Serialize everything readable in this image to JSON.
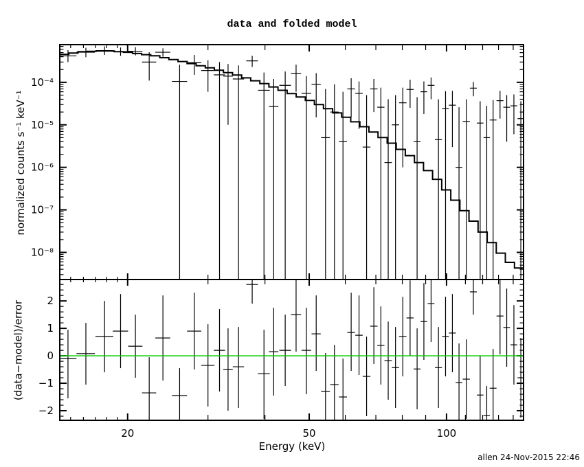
{
  "footer": "allen 24-Nov-2015 22:46",
  "colors": {
    "foreground": "#000000",
    "background": "#ffffff",
    "zero_line": "#00cc00"
  },
  "chart_data": {
    "type": "scatter",
    "title": "data and folded model",
    "xlabel": "Energy (keV)",
    "x_scale": "log",
    "xlim": [
      14.2,
      147.5
    ],
    "grid": false,
    "legend": "none",
    "x_major_ticks": [
      {
        "value": 20,
        "label": "20"
      },
      {
        "value": 50,
        "label": "50"
      },
      {
        "value": 100,
        "label": "100"
      }
    ],
    "x_minor_ticks": [
      15,
      16,
      17,
      18,
      19,
      30,
      40,
      60,
      70,
      80,
      90,
      110,
      120,
      130,
      140
    ],
    "panels": [
      {
        "name": "spectrum",
        "ylabel": "normalized counts s⁻¹ keV⁻¹",
        "y_scale": "log",
        "ylim": [
          2.3e-09,
          0.00077
        ],
        "y_major_ticks": [
          {
            "value": 0.0001,
            "label": "10⁻⁴"
          },
          {
            "value": 1e-05,
            "label": "10⁻⁵"
          },
          {
            "value": 1e-06,
            "label": "10⁻⁶"
          },
          {
            "value": 1e-07,
            "label": "10⁻⁷"
          },
          {
            "value": 1e-08,
            "label": "10⁻⁸"
          }
        ],
        "model_label": "folded model (stepped line)",
        "model_anchors": [
          [
            14.2,
            0.00044
          ],
          [
            16,
            0.00053
          ],
          [
            18,
            0.00055
          ],
          [
            20,
            0.00051
          ],
          [
            23,
            0.00042
          ],
          [
            26,
            0.00032
          ],
          [
            30,
            0.000225
          ],
          [
            35,
            0.000145
          ],
          [
            40,
            9.2e-05
          ],
          [
            45,
            5.8e-05
          ],
          [
            50,
            3.8e-05
          ],
          [
            55,
            2.4e-05
          ],
          [
            60,
            1.55e-05
          ],
          [
            65,
            1e-05
          ],
          [
            70,
            6.3e-06
          ],
          [
            75,
            4e-06
          ],
          [
            80,
            2.5e-06
          ],
          [
            85,
            1.6e-06
          ],
          [
            90,
            9.5e-07
          ],
          [
            95,
            5.5e-07
          ],
          [
            100,
            2.9e-07
          ],
          [
            105,
            1.6e-07
          ],
          [
            110,
            9e-08
          ],
          [
            115,
            5.2e-08
          ],
          [
            120,
            3e-08
          ],
          [
            125,
            1.8e-08
          ],
          [
            130,
            1.1e-08
          ],
          [
            135,
            7e-09
          ],
          [
            140,
            5e-09
          ],
          [
            147.5,
            3.8e-09
          ]
        ],
        "model_n_bins": 51,
        "points_columns": [
          "energy_keV",
          "half_width_keV",
          "value",
          "err_lo",
          "err_hi"
        ],
        "points": [
          [
            14.8,
            0.65,
            0.00042,
            0.0003,
            0.00057
          ],
          [
            16.2,
            0.75,
            0.00051,
            0.00039,
            0.00065
          ],
          [
            17.8,
            0.8,
            0.00056,
            0.00044,
            0.0007
          ],
          [
            19.3,
            0.75,
            0.00053,
            0.00042,
            0.00066
          ],
          [
            20.8,
            0.75,
            0.00054,
            0.00043,
            0.00067
          ],
          [
            22.3,
            0.8,
            0.0003,
            0.00011,
            0.00051
          ],
          [
            23.9,
            0.9,
            0.00051,
            0.0004,
            0.00063
          ],
          [
            26.0,
            1.0,
            0.000105,
            1e-12,
            0.00026
          ],
          [
            28.0,
            1.0,
            0.00029,
            0.00015,
            0.00044
          ],
          [
            30.0,
            1.0,
            0.00019,
            6e-05,
            0.00033
          ],
          [
            31.8,
            0.9,
            0.00015,
            1e-12,
            0.0003
          ],
          [
            33.2,
            0.8,
            0.00014,
            1e-05,
            0.00027
          ],
          [
            35.0,
            1.0,
            0.00012,
            1e-12,
            0.00025
          ],
          [
            37.5,
            1.1,
            0.00032,
            0.00023,
            0.00042
          ],
          [
            39.8,
            1.2,
            6.5e-05,
            1e-12,
            0.00017
          ],
          [
            41.8,
            1.0,
            2.7e-05,
            1e-12,
            0.00012
          ],
          [
            44.3,
            1.3,
            8.5e-05,
            1e-12,
            0.00018
          ],
          [
            46.8,
            1.2,
            0.00016,
            6e-05,
            0.00026
          ],
          [
            49.3,
            1.2,
            5.5e-05,
            1e-12,
            0.00014
          ],
          [
            51.8,
            1.2,
            9e-05,
            1.5e-05,
            0.000165
          ],
          [
            54.3,
            1.2,
            5e-06,
            1e-12,
            7e-05
          ],
          [
            56.8,
            1.2,
            2e-05,
            1e-12,
            9e-05
          ],
          [
            59.3,
            1.2,
            4e-06,
            1e-12,
            6e-05
          ],
          [
            61.8,
            1.2,
            7e-05,
            1.5e-05,
            0.000125
          ],
          [
            64.3,
            1.2,
            5.5e-05,
            8e-06,
            0.000105
          ],
          [
            66.8,
            1.3,
            3e-06,
            1e-12,
            5e-05
          ],
          [
            69.3,
            1.3,
            7e-05,
            2e-05,
            0.00012
          ],
          [
            71.8,
            1.3,
            2.6e-05,
            1e-12,
            7.5e-05
          ],
          [
            74.5,
            1.4,
            1.3e-06,
            1e-12,
            4e-05
          ],
          [
            77.3,
            1.4,
            1e-05,
            1e-12,
            5e-05
          ],
          [
            80.2,
            1.5,
            3.3e-05,
            1e-06,
            7.5e-05
          ],
          [
            83.2,
            1.5,
            6.8e-05,
            2.5e-05,
            0.000115
          ],
          [
            86.2,
            1.5,
            4e-06,
            1e-12,
            4.5e-05
          ],
          [
            89.2,
            1.5,
            6e-05,
            1.8e-05,
            0.000105
          ],
          [
            92.5,
            1.6,
            8.5e-05,
            4e-05,
            0.00013
          ],
          [
            96.0,
            1.7,
            4.5e-06,
            1e-12,
            4e-05
          ],
          [
            99.5,
            1.7,
            2.4e-05,
            1e-12,
            6.2e-05
          ],
          [
            103.0,
            1.8,
            2.9e-05,
            3e-06,
            6.3e-05
          ],
          [
            106.5,
            1.8,
            1e-06,
            1e-12,
            2.6e-05
          ],
          [
            110.5,
            2.0,
            1.2e-05,
            1e-12,
            4e-05
          ],
          [
            114.5,
            2.0,
            7.3e-05,
            4.7e-05,
            0.000102
          ],
          [
            118.5,
            2.0,
            1.1e-05,
            1e-12,
            3.6e-05
          ],
          [
            122.5,
            2.0,
            5e-06,
            1e-12,
            2.8e-05
          ],
          [
            126.5,
            2.2,
            1.3e-05,
            1e-12,
            3.8e-05
          ],
          [
            131.0,
            2.3,
            3.7e-05,
            1.4e-05,
            6.3e-05
          ],
          [
            135.5,
            2.3,
            2.6e-05,
            4e-06,
            5e-05
          ],
          [
            140.5,
            2.4,
            2.8e-05,
            6e-06,
            5.2e-05
          ],
          [
            145.5,
            2.4,
            1.4e-05,
            1e-12,
            3.6e-05
          ]
        ]
      },
      {
        "name": "residuals",
        "ylabel": "(data−model)/error",
        "y_scale": "linear",
        "ylim": [
          -2.35,
          2.78
        ],
        "y_major_ticks": [
          {
            "value": 2,
            "label": "2"
          },
          {
            "value": 1,
            "label": "1"
          },
          {
            "value": 0,
            "label": "0"
          },
          {
            "value": -1,
            "label": "−1"
          },
          {
            "value": -2,
            "label": "−2"
          }
        ],
        "y_minor_step": 0.2,
        "zero_line": {
          "value": 0,
          "color": "#00cc00"
        },
        "points_columns": [
          "energy_keV",
          "half_width_keV",
          "value",
          "err_lo",
          "err_hi"
        ],
        "points": [
          [
            14.8,
            0.65,
            -0.1,
            -1.55,
            0.95
          ],
          [
            16.2,
            0.75,
            0.08,
            -1.05,
            1.2
          ],
          [
            17.8,
            0.8,
            0.7,
            -0.6,
            2.0
          ],
          [
            19.3,
            0.75,
            0.9,
            -0.45,
            2.25
          ],
          [
            20.8,
            0.75,
            0.35,
            -0.8,
            1.5
          ],
          [
            22.3,
            0.8,
            -1.35,
            -2.65,
            -0.05
          ],
          [
            23.9,
            0.9,
            0.65,
            -0.9,
            2.2
          ],
          [
            26.0,
            1.0,
            -1.45,
            -2.45,
            -0.45
          ],
          [
            28.0,
            1.0,
            0.9,
            -0.5,
            2.3
          ],
          [
            30.0,
            1.0,
            -0.35,
            -1.85,
            1.15
          ],
          [
            31.8,
            0.9,
            0.2,
            -1.3,
            1.7
          ],
          [
            33.2,
            0.8,
            -0.5,
            -2.0,
            1.0
          ],
          [
            35.0,
            1.0,
            -0.4,
            -1.9,
            1.05
          ],
          [
            37.5,
            1.1,
            2.6,
            1.9,
            3.1
          ],
          [
            39.8,
            1.2,
            -0.65,
            -2.3,
            0.95
          ],
          [
            41.8,
            1.0,
            0.15,
            -1.45,
            1.75
          ],
          [
            44.3,
            1.3,
            0.2,
            -1.1,
            1.5
          ],
          [
            46.8,
            1.2,
            1.5,
            0.15,
            2.9
          ],
          [
            49.3,
            1.2,
            0.2,
            -1.4,
            1.75
          ],
          [
            51.8,
            1.2,
            0.8,
            -0.55,
            2.2
          ],
          [
            54.3,
            1.2,
            -1.3,
            -2.7,
            0.1
          ],
          [
            56.8,
            1.2,
            -1.05,
            -2.5,
            0.4
          ],
          [
            59.3,
            1.2,
            -1.5,
            -2.9,
            -0.1
          ],
          [
            61.8,
            1.2,
            0.85,
            -0.55,
            2.3
          ],
          [
            64.3,
            1.2,
            0.75,
            -0.7,
            2.2
          ],
          [
            66.8,
            1.3,
            -0.75,
            -2.2,
            0.7
          ],
          [
            69.3,
            1.3,
            1.08,
            -0.3,
            2.5
          ],
          [
            71.8,
            1.3,
            0.38,
            -1.05,
            1.8
          ],
          [
            74.5,
            1.4,
            -0.18,
            -1.6,
            1.25
          ],
          [
            77.3,
            1.4,
            -0.43,
            -1.9,
            1.05
          ],
          [
            80.2,
            1.5,
            0.7,
            -0.75,
            2.15
          ],
          [
            83.2,
            1.5,
            1.38,
            0.0,
            2.75
          ],
          [
            86.2,
            1.5,
            -0.48,
            -1.95,
            1.0
          ],
          [
            89.2,
            1.5,
            1.25,
            -0.15,
            2.65
          ],
          [
            92.5,
            1.6,
            1.9,
            0.5,
            3.2
          ],
          [
            96.0,
            1.7,
            -0.43,
            -1.9,
            1.05
          ],
          [
            99.5,
            1.7,
            0.7,
            -0.75,
            2.15
          ],
          [
            103.0,
            1.8,
            0.83,
            -0.6,
            2.25
          ],
          [
            106.5,
            1.8,
            -0.98,
            -2.4,
            0.45
          ],
          [
            110.5,
            2.0,
            -0.85,
            -2.3,
            0.6
          ],
          [
            114.5,
            2.0,
            2.33,
            1.5,
            3.1
          ],
          [
            118.5,
            2.0,
            -1.43,
            -2.85,
            0.0
          ],
          [
            122.5,
            2.0,
            -2.18,
            -3.2,
            -1.1
          ],
          [
            126.5,
            2.2,
            -1.18,
            -2.6,
            0.25
          ],
          [
            131.0,
            2.3,
            1.45,
            0.05,
            2.85
          ],
          [
            135.5,
            2.3,
            1.03,
            -0.4,
            2.45
          ],
          [
            140.5,
            2.4,
            0.4,
            -1.05,
            1.85
          ],
          [
            145.5,
            2.4,
            -0.8,
            -2.25,
            0.65
          ]
        ]
      }
    ]
  }
}
